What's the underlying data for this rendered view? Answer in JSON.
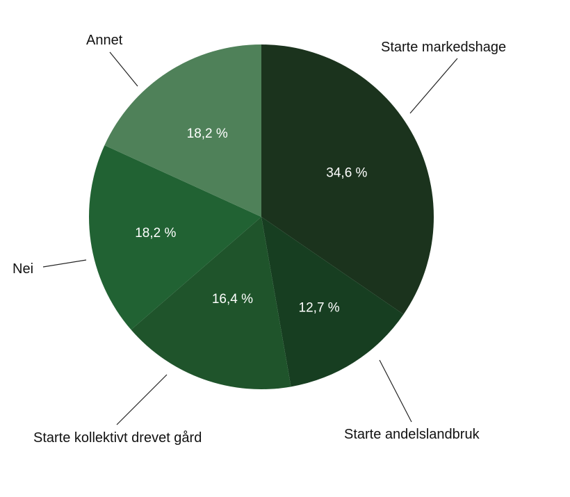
{
  "chart_data": {
    "type": "pie",
    "slices": [
      {
        "label": "Starte markedshage",
        "value": 34.6,
        "value_text": "34,6 %",
        "color": "#1b331d"
      },
      {
        "label": "Starte andelslandbruk",
        "value": 12.7,
        "value_text": "12,7 %",
        "color": "#173e21"
      },
      {
        "label": "Starte kollektivt drevet gård",
        "value": 16.4,
        "value_text": "16,4 %",
        "color": "#1f542b"
      },
      {
        "label": "Nei",
        "value": 18.2,
        "value_text": "18,2 %",
        "color": "#216233"
      },
      {
        "label": "Annet",
        "value": 18.2,
        "value_text": "18,2 %",
        "color": "#4f8159"
      }
    ]
  }
}
